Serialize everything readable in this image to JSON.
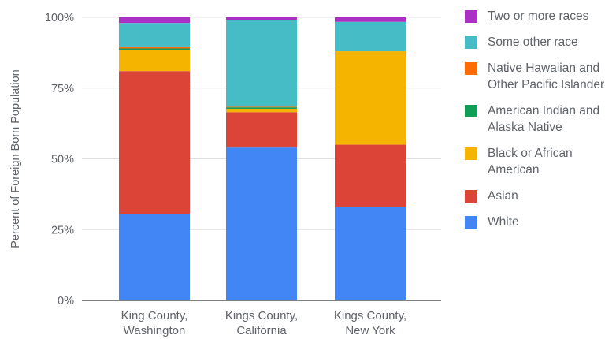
{
  "chart_data": {
    "type": "bar",
    "stacked": true,
    "title": "",
    "xlabel": "",
    "ylabel": "Percent of Foreign Born Population",
    "ylim": [
      0,
      100
    ],
    "yticks": [
      "0%",
      "25%",
      "50%",
      "75%",
      "100%"
    ],
    "grid": true,
    "legend_position": "right",
    "categories": [
      [
        "King County,",
        "Washington"
      ],
      [
        "Kings County,",
        "California"
      ],
      [
        "Kings County,",
        "New York"
      ]
    ],
    "series": [
      {
        "name": "White",
        "color": "#4285f4",
        "values": [
          30.5,
          54,
          33
        ]
      },
      {
        "name": "Asian",
        "color": "#db4437",
        "values": [
          50.5,
          12.5,
          22
        ]
      },
      {
        "name": "Black or African American",
        "color": "#f4b400",
        "values": [
          7.5,
          1.2,
          33
        ]
      },
      {
        "name": "American Indian and Alaska Native",
        "color": "#0f9d58",
        "values": [
          0.5,
          0.5,
          0
        ]
      },
      {
        "name": "Native Hawaiian and Other Pacific Islander",
        "color": "#ff6d00",
        "values": [
          0.7,
          0.2,
          0
        ]
      },
      {
        "name": "Some other race",
        "color": "#46bdc6",
        "values": [
          8.3,
          30.7,
          10.4
        ]
      },
      {
        "name": "Two or more races",
        "color": "#ab30c4",
        "values": [
          2,
          0.9,
          1.6
        ]
      }
    ],
    "legend": [
      [
        "Two or more races"
      ],
      [
        "Some other race"
      ],
      [
        "Native Hawaiian and",
        "Other Pacific Islander"
      ],
      [
        "American Indian and",
        "Alaska Native"
      ],
      [
        "Black or African",
        "American"
      ],
      [
        "Asian"
      ],
      [
        "White"
      ]
    ],
    "legend_colors": [
      "#ab30c4",
      "#46bdc6",
      "#ff6d00",
      "#0f9d58",
      "#f4b400",
      "#db4437",
      "#4285f4"
    ]
  }
}
